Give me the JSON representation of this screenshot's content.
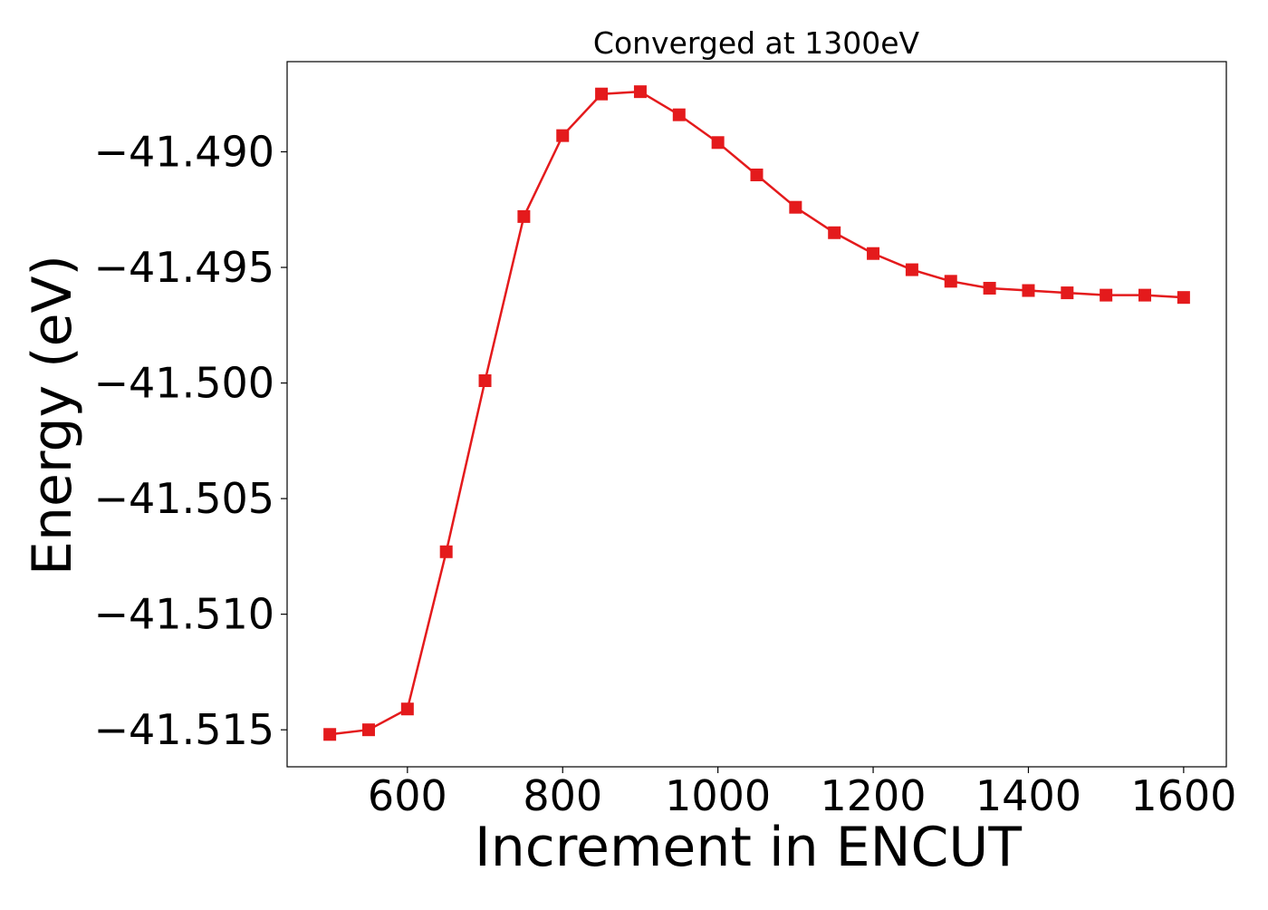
{
  "chart_data": {
    "type": "line",
    "title": "Converged at 1300eV",
    "xlabel": "Increment in ENCUT",
    "ylabel": "Energy (eV)",
    "x": [
      500,
      550,
      600,
      650,
      700,
      750,
      800,
      850,
      900,
      950,
      1000,
      1050,
      1100,
      1150,
      1200,
      1250,
      1300,
      1350,
      1400,
      1450,
      1500,
      1550,
      1600
    ],
    "series": [
      {
        "values": [
          -41.5152,
          -41.515,
          -41.5141,
          -41.5073,
          -41.4999,
          -41.4928,
          -41.4893,
          -41.4875,
          -41.4874,
          -41.4884,
          -41.4896,
          -41.491,
          -41.4924,
          -41.4935,
          -41.4944,
          -41.4951,
          -41.4956,
          -41.4959,
          -41.496,
          -41.4961,
          -41.4962,
          -41.4962,
          -41.4963
        ],
        "color": "#e41a1c",
        "marker": "square"
      }
    ],
    "xlim": [
      445,
      1655
    ],
    "ylim": [
      -41.5166,
      -41.4861
    ],
    "x_ticks": [
      600,
      800,
      1000,
      1200,
      1400,
      1600
    ],
    "x_tick_labels": [
      "600",
      "800",
      "1000",
      "1200",
      "1400",
      "1600"
    ],
    "y_ticks": [
      -41.49,
      -41.495,
      -41.5,
      -41.505,
      -41.51,
      -41.515
    ],
    "y_tick_labels": [
      "−41.490",
      "−41.495",
      "−41.500",
      "−41.505",
      "−41.510",
      "−41.515"
    ],
    "grid": false,
    "legend": "none"
  }
}
